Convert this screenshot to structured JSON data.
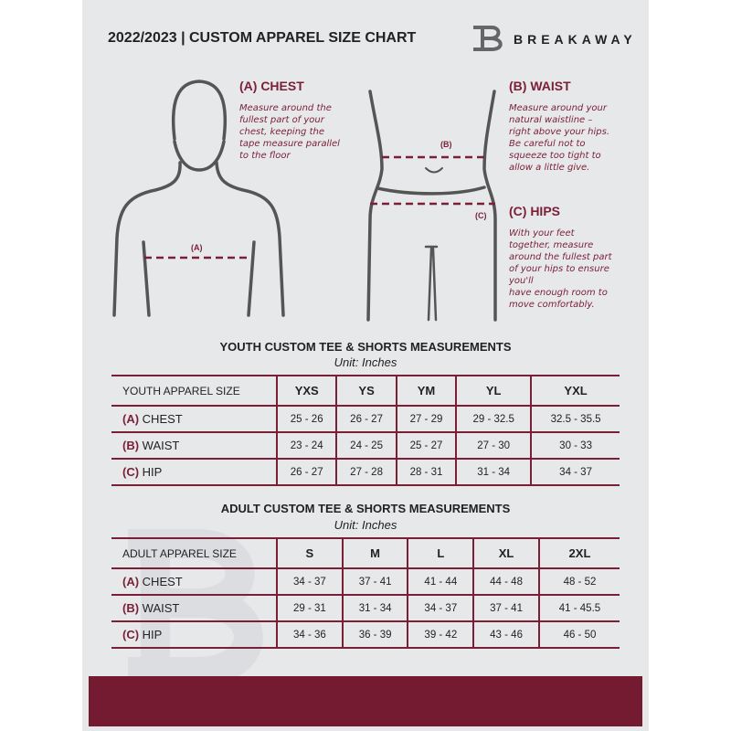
{
  "header": {
    "title": "2022/2023  |  CUSTOM APPAREL SIZE CHART",
    "brand": "BREAKAWAY",
    "logo_letter": "B"
  },
  "colors": {
    "accent": "#7a1f36",
    "background": "#e7e8ea",
    "footer": "#741b32"
  },
  "chest": {
    "heading": "(A) CHEST",
    "lines": [
      "Measure around the",
      "fullest part of your",
      "chest, keeping the",
      "tape measure parallel",
      "to the floor"
    ],
    "marker": "(A)"
  },
  "waist": {
    "heading": "(B) WAIST",
    "lines": [
      "Measure around your",
      "natural waistline –",
      "right above your hips.",
      "Be careful not to",
      "squeeze too tight to",
      "allow a little give."
    ],
    "marker": "(B)"
  },
  "hips": {
    "heading": "(C) HIPS",
    "lines": [
      "With your feet",
      "together, measure",
      "around the fullest part",
      "of your hips to ensure",
      "you'll",
      "have enough room to",
      "move comfortably."
    ],
    "marker": "(C)"
  },
  "youth": {
    "title": "YOUTH CUSTOM TEE & SHORTS MEASUREMENTS",
    "unit": "Unit: Inches",
    "header": [
      "YOUTH APPAREL SIZE",
      "YXS",
      "YS",
      "YM",
      "YL",
      "YXL"
    ],
    "rows": [
      {
        "label": "(A)",
        "name": "CHEST",
        "values": [
          "25 - 26",
          "26 - 27",
          "27 - 29",
          "29 - 32.5",
          "32.5 - 35.5"
        ]
      },
      {
        "label": "(B)",
        "name": "WAIST",
        "values": [
          "23 - 24",
          "24 - 25",
          "25 - 27",
          "27 - 30",
          "30 - 33"
        ]
      },
      {
        "label": "(C)",
        "name": "HIP",
        "values": [
          "26 - 27",
          "27 - 28",
          "28 - 31",
          "31 - 34",
          "34 - 37"
        ]
      }
    ]
  },
  "adult": {
    "title": "ADULT CUSTOM TEE & SHORTS MEASUREMENTS",
    "unit": "Unit: Inches",
    "header": [
      "ADULT APPAREL SIZE",
      "S",
      "M",
      "L",
      "XL",
      "2XL"
    ],
    "rows": [
      {
        "label": "(A)",
        "name": "CHEST",
        "values": [
          "34 - 37",
          "37 - 41",
          "41 - 44",
          "44 - 48",
          "48 - 52"
        ]
      },
      {
        "label": "(B)",
        "name": "WAIST",
        "values": [
          "29 - 31",
          "31 - 34",
          "34 - 37",
          "37 - 41",
          "41 - 45.5"
        ]
      },
      {
        "label": "(C)",
        "name": "HIP",
        "values": [
          "34 - 36",
          "36 - 39",
          "39 - 42",
          "43 - 46",
          "46 - 50"
        ]
      }
    ]
  }
}
